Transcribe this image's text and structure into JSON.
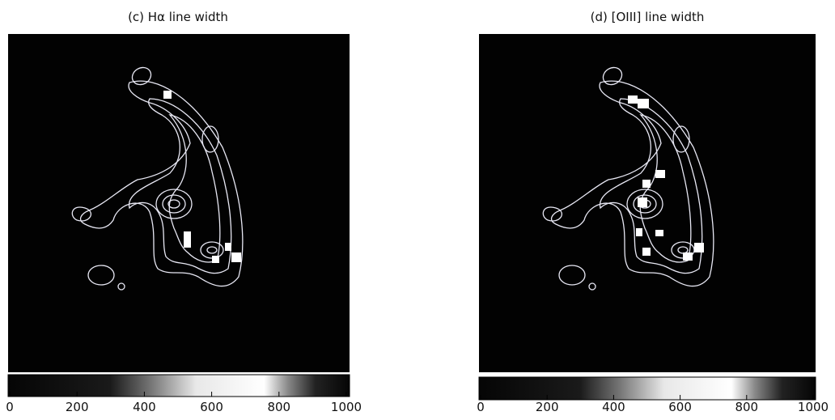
{
  "panels": [
    {
      "title": "(c) Hα line width",
      "colorbar": {
        "lim": [
          0,
          1000
        ],
        "ticks": [
          0,
          200,
          400,
          600,
          800,
          1000
        ]
      }
    },
    {
      "title": "(d) [OIII] line width",
      "colorbar": {
        "lim": [
          0,
          1000
        ],
        "ticks": [
          0,
          200,
          400,
          600,
          800,
          1000
        ]
      }
    }
  ]
}
